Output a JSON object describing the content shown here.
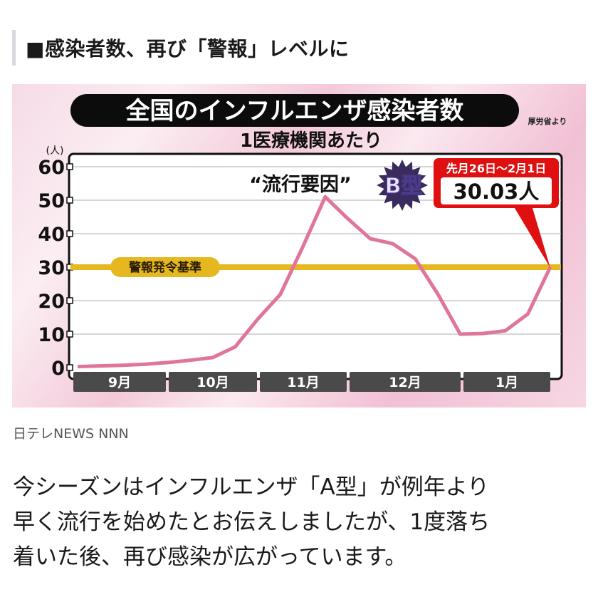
{
  "heading": "■感染者数、再び「警報」レベルに",
  "figure": {
    "title": "全国のインフルエンザ感染者数",
    "subtitle": "1医療機関あたり",
    "source_note": "厚労省より",
    "unit_label": "(人)",
    "threshold_label": "警報発令基準",
    "annotation_quote": "“流行要因”",
    "annotation_type": "B型",
    "callout_period": "先月26日〜2月1日",
    "callout_value": "30.03人"
  },
  "caption": "日テレNEWS NNN",
  "body": [
    "今シーズンはインフルエンザ「A型」が例年より",
    "早く流行を始めたとお伝えしましたが、1度落ち",
    "着いた後、再び感染が広がっています。"
  ],
  "colors": {
    "line": "#e0759a",
    "threshold": "#e6b820",
    "callout": "#e01010",
    "star": "#3a2b5e",
    "month_bar": "#4a4a4a"
  },
  "chart_data": {
    "type": "line",
    "title": "全国のインフルエンザ感染者数",
    "subtitle": "1医療機関あたり",
    "xlabel": "",
    "ylabel": "(人)",
    "ylim": [
      0,
      60
    ],
    "yticks": [
      0,
      10,
      20,
      30,
      40,
      50,
      60
    ],
    "grid": true,
    "month_labels": [
      "9月",
      "10月",
      "11月",
      "12月",
      "1月"
    ],
    "threshold": {
      "label": "警報発令基準",
      "value": 30
    },
    "series": [
      {
        "name": "1医療機関あたり感染者数",
        "values": [
          0.3,
          0.5,
          0.7,
          1.0,
          1.5,
          2.2,
          3.0,
          6.2,
          14.5,
          21.8,
          36.0,
          51.0,
          44.5,
          38.5,
          37.0,
          32.5,
          22.0,
          10.0,
          10.2,
          11.0,
          16.0,
          30.03
        ]
      }
    ],
    "annotations": [
      "“流行要因” B型",
      "先月26日〜2月1日 30.03人"
    ],
    "source": "厚労省より"
  }
}
